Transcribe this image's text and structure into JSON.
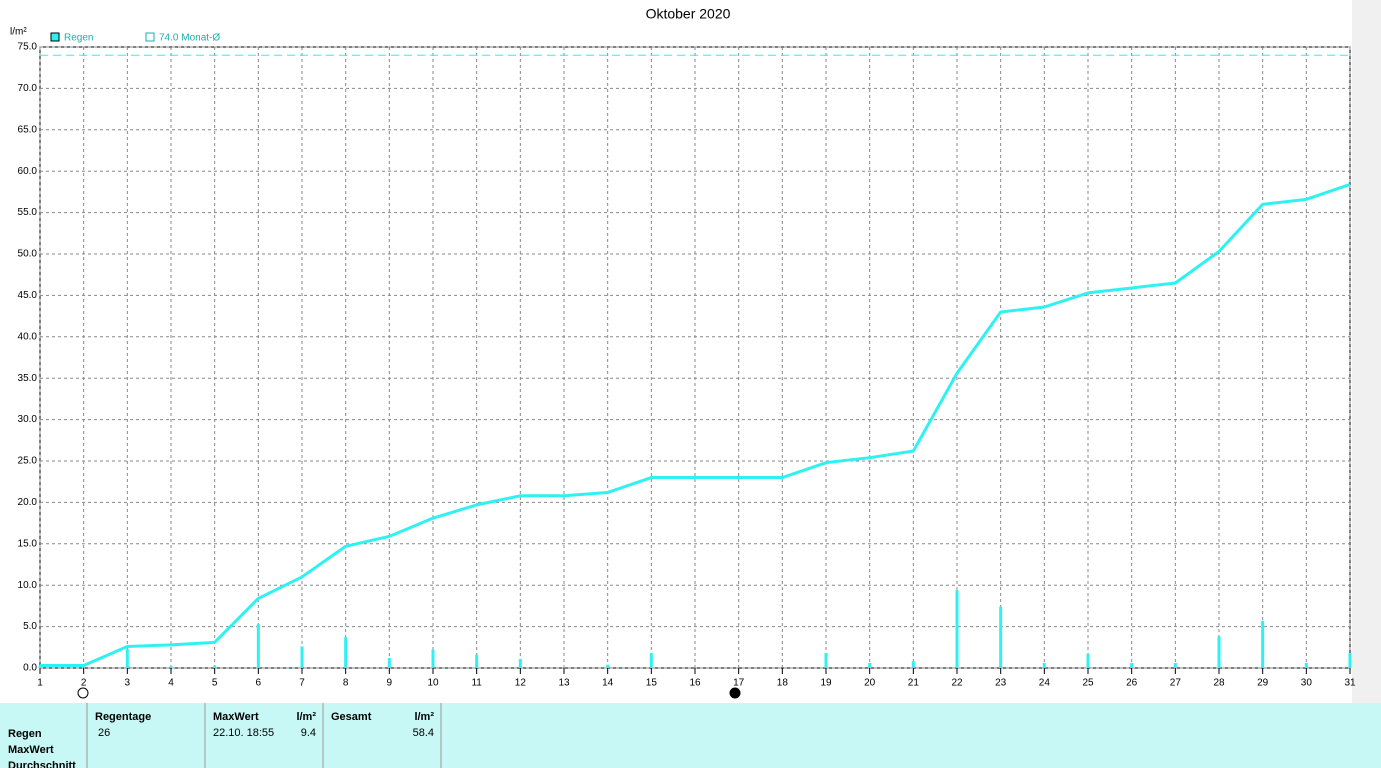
{
  "chart_data": {
    "type": "line",
    "title": "Oktober 2020",
    "y_label": "l/m²",
    "x": [
      1,
      2,
      3,
      4,
      5,
      6,
      7,
      8,
      9,
      10,
      11,
      12,
      13,
      14,
      15,
      16,
      17,
      18,
      19,
      20,
      21,
      22,
      23,
      24,
      25,
      26,
      27,
      28,
      29,
      30,
      31
    ],
    "xlim": [
      1,
      31
    ],
    "xticks": [
      1,
      2,
      3,
      4,
      5,
      6,
      7,
      8,
      9,
      10,
      11,
      12,
      13,
      14,
      15,
      16,
      17,
      18,
      19,
      20,
      21,
      22,
      23,
      24,
      25,
      26,
      27,
      28,
      29,
      30,
      31
    ],
    "ylim": [
      0,
      75
    ],
    "yticks": [
      {
        "value": 0,
        "label": "0.0"
      },
      {
        "value": 5,
        "label": "5.0"
      },
      {
        "value": 10,
        "label": "10.0"
      },
      {
        "value": 15,
        "label": "15.0"
      },
      {
        "value": 20,
        "label": "20.0"
      },
      {
        "value": 25,
        "label": "25.0"
      },
      {
        "value": 30,
        "label": "30.0"
      },
      {
        "value": 35,
        "label": "35.0"
      },
      {
        "value": 40,
        "label": "40.0"
      },
      {
        "value": 45,
        "label": "45.0"
      },
      {
        "value": 50,
        "label": "50.0"
      },
      {
        "value": 55,
        "label": "55.0"
      },
      {
        "value": 60,
        "label": "60.0"
      },
      {
        "value": 65,
        "label": "65.0"
      },
      {
        "value": 70,
        "label": "70.0"
      },
      {
        "value": 75,
        "label": "75.0"
      }
    ],
    "grid": true,
    "series": [
      {
        "name": "Regen",
        "type": "line",
        "color": "#2ef2f2",
        "values": [
          0.3,
          0.3,
          2.6,
          2.8,
          3.1,
          8.4,
          11.0,
          14.7,
          15.9,
          18.1,
          19.7,
          20.8,
          20.8,
          21.2,
          23.0,
          23.0,
          23.0,
          23.0,
          24.8,
          25.4,
          26.2,
          35.6,
          43.0,
          43.6,
          45.3,
          45.9,
          46.5,
          50.3,
          56.0,
          56.6,
          58.4
        ]
      },
      {
        "type": "bar",
        "color": "#2ef2f2",
        "values": [
          0.3,
          0,
          2.3,
          0.2,
          0.3,
          5.3,
          2.6,
          3.7,
          1.2,
          2.2,
          1.6,
          1.1,
          0,
          0.4,
          1.8,
          0,
          0,
          0,
          1.8,
          0.6,
          0.8,
          9.4,
          7.4,
          0.6,
          1.7,
          0.6,
          0.6,
          3.8,
          5.7,
          0.6,
          1.8
        ]
      }
    ],
    "reference": {
      "value": 74,
      "label": "74.0 Monat-Ø",
      "color": "#2ef2f2"
    }
  },
  "table": {
    "headers": [
      "Regentage",
      "MaxWert",
      "l/m²",
      "Gesamt",
      "l/m²"
    ],
    "row_labels": [
      "Regen",
      "MaxWert",
      "Durchschnitt"
    ],
    "rows": [
      [
        "26",
        "22.10.  18:55",
        "9.4",
        "58.4"
      ]
    ]
  }
}
